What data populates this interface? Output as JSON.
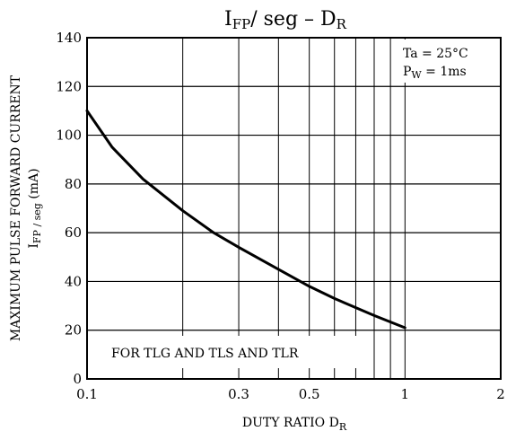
{
  "chart_data": {
    "type": "line",
    "title": {
      "main_1": "I",
      "sub_1": "FP",
      "main_2": "/ seg  –  D",
      "sub_2": "R"
    },
    "conditions": {
      "ta": "Ta = 25°C",
      "pw_main": "P",
      "pw_sub": "W",
      "pw_rest": " = 1ms"
    },
    "annotation": "FOR TLG AND TLS AND TLR",
    "xlabel": {
      "main": "DUTY RATIO   D",
      "sub": "R"
    },
    "ylabel": {
      "line1": "MAXIMUM PULSE FORWARD CURRENT",
      "line2_main": "I",
      "line2_sub": "FP / seg",
      "line2_rest": "   (mA)"
    },
    "x_scale": "log",
    "xlim": [
      0.1,
      2
    ],
    "ylim": [
      0,
      140
    ],
    "x_ticks": [
      {
        "value": 0.1,
        "label": "0.1"
      },
      {
        "value": 0.3,
        "label": "0.3"
      },
      {
        "value": 0.5,
        "label": "0.5"
      },
      {
        "value": 1,
        "label": "1"
      },
      {
        "value": 2,
        "label": "2"
      }
    ],
    "x_gridlines": [
      0.2,
      0.3,
      0.4,
      0.5,
      0.6,
      0.7,
      0.8,
      0.9,
      1
    ],
    "y_ticks": [
      0,
      20,
      40,
      60,
      80,
      100,
      120,
      140
    ],
    "series": [
      {
        "x": [
          0.1,
          0.12,
          0.15,
          0.2,
          0.25,
          0.3,
          0.4,
          0.5,
          0.6,
          0.8,
          1.0
        ],
        "y": [
          110,
          95,
          82,
          69,
          60,
          54,
          45,
          38,
          33,
          26,
          21
        ]
      }
    ],
    "grid": true
  }
}
